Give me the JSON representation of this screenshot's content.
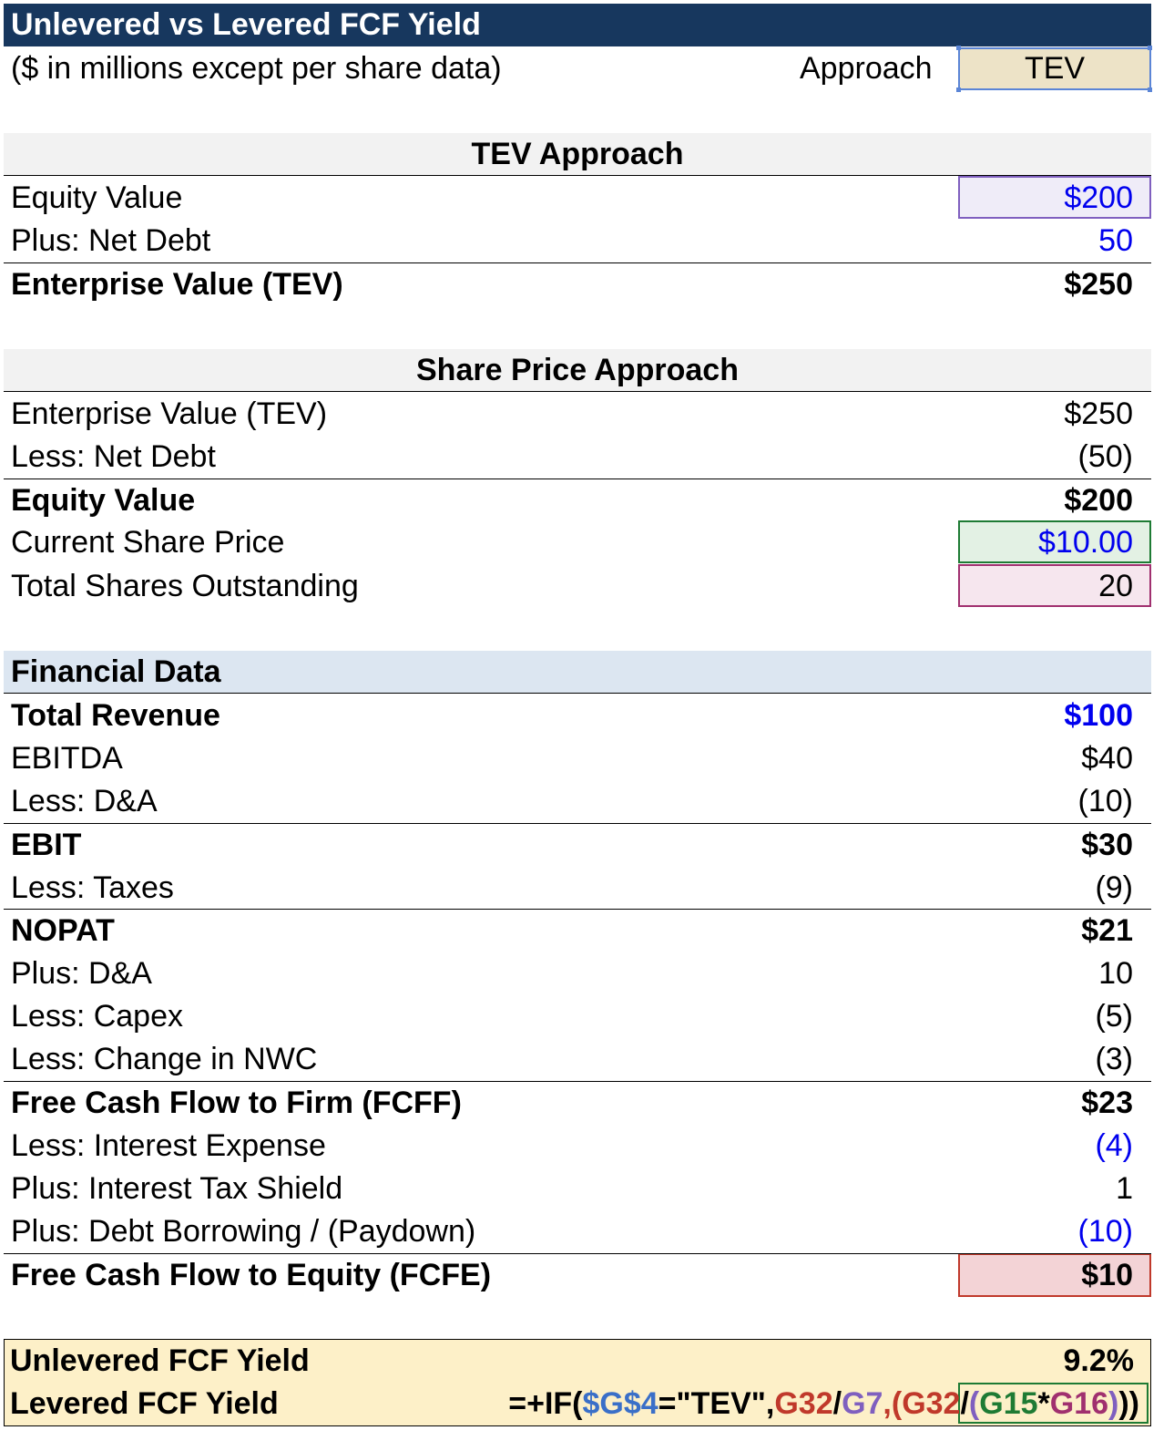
{
  "header": {
    "title": "Unlevered vs Levered FCF Yield",
    "subtitle": "($ in millions except per share data)",
    "approach_label": "Approach",
    "approach_value": "TEV"
  },
  "tev_approach": {
    "heading": "TEV Approach",
    "rows": [
      {
        "label": "Equity Value",
        "value": "$200"
      },
      {
        "label": "Plus: Net Debt",
        "value": "50"
      },
      {
        "label": "Enterprise Value (TEV)",
        "value": "$250"
      }
    ]
  },
  "share_price_approach": {
    "heading": "Share Price Approach",
    "rows": [
      {
        "label": "Enterprise Value (TEV)",
        "value": "$250"
      },
      {
        "label": "Less: Net Debt",
        "value": "(50)"
      },
      {
        "label": "Equity Value",
        "value": "$200"
      },
      {
        "label": "Current Share Price",
        "value": "$10.00"
      },
      {
        "label": "Total Shares Outstanding",
        "value": "20"
      }
    ]
  },
  "financial_data": {
    "heading": "Financial Data",
    "rows": [
      {
        "label": "Total Revenue",
        "value": "$100"
      },
      {
        "label": "EBITDA",
        "value": "$40"
      },
      {
        "label": "Less: D&A",
        "value": "(10)"
      },
      {
        "label": "EBIT",
        "value": "$30"
      },
      {
        "label": "Less: Taxes",
        "value": "(9)"
      },
      {
        "label": "NOPAT",
        "value": "$21"
      },
      {
        "label": "Plus: D&A",
        "value": "10"
      },
      {
        "label": "Less: Capex",
        "value": "(5)"
      },
      {
        "label": "Less: Change in NWC",
        "value": "(3)"
      },
      {
        "label": "Free Cash Flow to Firm (FCFF)",
        "value": "$23"
      },
      {
        "label": "Less: Interest Expense",
        "value": "(4)"
      },
      {
        "label": "Plus: Interest Tax Shield",
        "value": "1"
      },
      {
        "label": "Plus: Debt Borrowing / (Paydown)",
        "value": "(10)"
      },
      {
        "label": "Free Cash Flow to Equity (FCFE)",
        "value": "$10"
      }
    ]
  },
  "yields": {
    "unlevered_label": "Unlevered FCF Yield",
    "unlevered_value": "9.2%",
    "levered_label": "Levered FCF Yield",
    "levered_formula": {
      "p1": "=+IF(",
      "p2": "$G$4",
      "p3": "=\"TEV\",",
      "p4": "G32",
      "p5": "/",
      "p6": "G7",
      "p7": ",(",
      "p8": "G32",
      "p9": "/",
      "p10": "(",
      "p11": "G15",
      "p12": "*",
      "p13": "G16",
      "p14": ")",
      "p15": "))"
    }
  },
  "colors": {
    "title_bg": "#17375e",
    "input_blue": "#0000ee",
    "ref_blue": "#3a6fc8",
    "ref_red": "#c0392b",
    "ref_purple": "#7f5fbf",
    "ref_green": "#1e7b34",
    "ref_magenta": "#a0306f"
  }
}
